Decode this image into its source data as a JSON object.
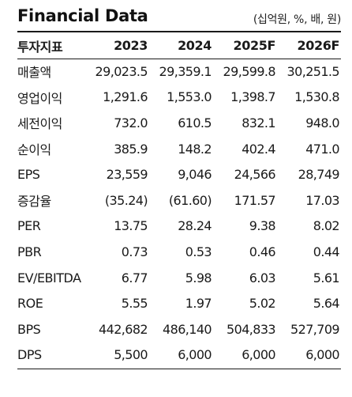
{
  "header": {
    "title": "Financial Data",
    "unit": "(십억원, %, 배, 원)"
  },
  "table": {
    "columns": [
      "투자지표",
      "2023",
      "2024",
      "2025F",
      "2026F"
    ],
    "rows": [
      [
        "매출액",
        "29,023.5",
        "29,359.1",
        "29,599.8",
        "30,251.5"
      ],
      [
        "영업이익",
        "1,291.6",
        "1,553.0",
        "1,398.7",
        "1,530.8"
      ],
      [
        "세전이익",
        "732.0",
        "610.5",
        "832.1",
        "948.0"
      ],
      [
        "순이익",
        "385.9",
        "148.2",
        "402.4",
        "471.0"
      ],
      [
        "EPS",
        "23,559",
        "9,046",
        "24,566",
        "28,749"
      ],
      [
        "증감율",
        "(35.24)",
        "(61.60)",
        "171.57",
        "17.03"
      ],
      [
        "PER",
        "13.75",
        "28.24",
        "9.38",
        "8.02"
      ],
      [
        "PBR",
        "0.73",
        "0.53",
        "0.46",
        "0.44"
      ],
      [
        "EV/EBITDA",
        "6.77",
        "5.98",
        "6.03",
        "5.61"
      ],
      [
        "ROE",
        "5.55",
        "1.97",
        "5.02",
        "5.64"
      ],
      [
        "BPS",
        "442,682",
        "486,140",
        "504,833",
        "527,709"
      ],
      [
        "DPS",
        "5,500",
        "6,000",
        "6,000",
        "6,000"
      ]
    ]
  }
}
